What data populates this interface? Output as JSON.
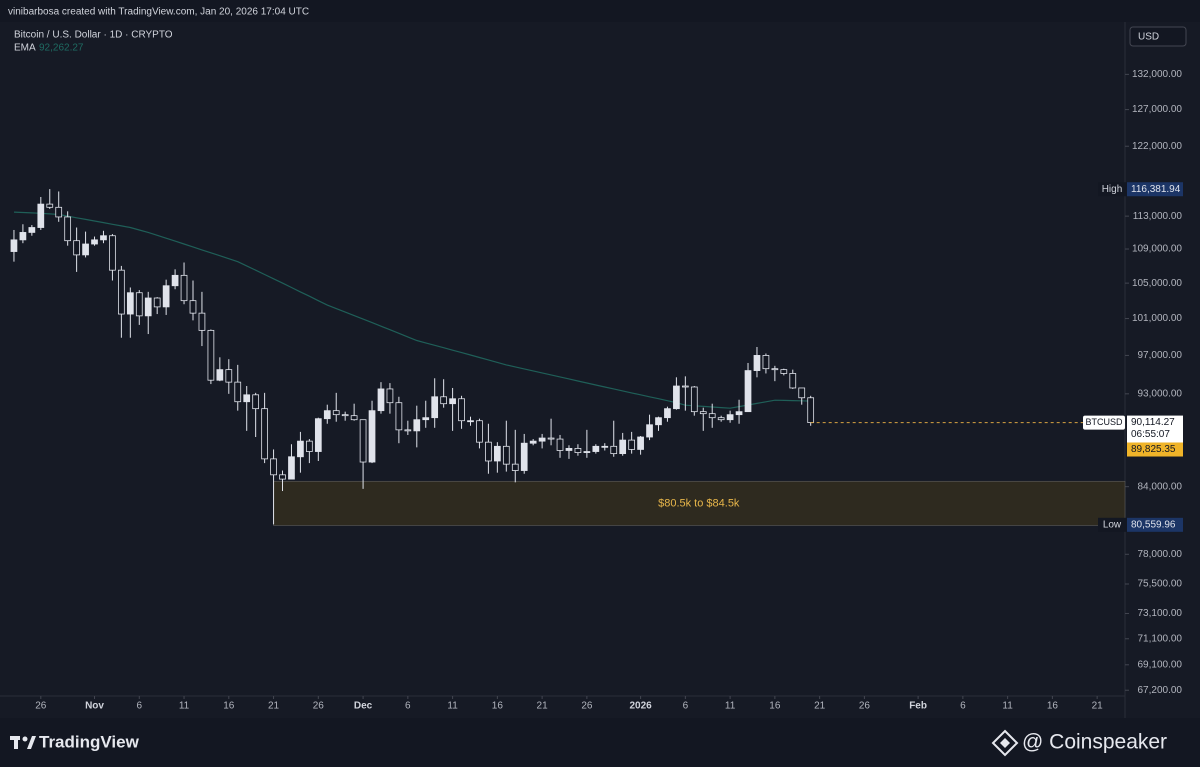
{
  "chart_data": {
    "type": "candlestick",
    "header": "vinibarbosa created with TradingView.com, Jan 20, 2026 17:04 UTC",
    "title": "Bitcoin / U.S. Dollar · 1D · CRYPTO",
    "currency": "USD",
    "log_scale": true,
    "grid": false,
    "x": [
      "Oct 23",
      "Oct 24",
      "Oct 25",
      "Oct 26",
      "Oct 27",
      "Oct 28",
      "Oct 29",
      "Oct 30",
      "Oct 31",
      "Nov 1",
      "Nov 2",
      "Nov 3",
      "Nov 4",
      "Nov 5",
      "Nov 6",
      "Nov 7",
      "Nov 8",
      "Nov 9",
      "Nov 10",
      "Nov 11",
      "Nov 12",
      "Nov 13",
      "Nov 14",
      "Nov 15",
      "Nov 16",
      "Nov 17",
      "Nov 18",
      "Nov 19",
      "Nov 20",
      "Nov 21",
      "Nov 22",
      "Nov 23",
      "Nov 24",
      "Nov 25",
      "Nov 26",
      "Nov 27",
      "Nov 28",
      "Nov 29",
      "Nov 30",
      "Dec 1",
      "Dec 2",
      "Dec 3",
      "Dec 4",
      "Dec 5",
      "Dec 6",
      "Dec 7",
      "Dec 8",
      "Dec 9",
      "Dec 10",
      "Dec 11",
      "Dec 12",
      "Dec 13",
      "Dec 14",
      "Dec 15",
      "Dec 16",
      "Dec 17",
      "Dec 18",
      "Dec 19",
      "Dec 20",
      "Dec 21",
      "Dec 22",
      "Dec 23",
      "Dec 24",
      "Dec 25",
      "Dec 26",
      "Dec 27",
      "Dec 28",
      "Dec 29",
      "Dec 30",
      "Dec 31",
      "Jan 1",
      "Jan 2",
      "Jan 3",
      "Jan 4",
      "Jan 5",
      "Jan 6",
      "Jan 7",
      "Jan 8",
      "Jan 9",
      "Jan 10",
      "Jan 11",
      "Jan 12",
      "Jan 13",
      "Jan 14",
      "Jan 15",
      "Jan 16",
      "Jan 17",
      "Jan 18",
      "Jan 19",
      "Jan 20"
    ],
    "xlim": [
      "Oct 22",
      "Feb 24"
    ],
    "xticks": [
      {
        "value": "Oct 26",
        "label": "26"
      },
      {
        "value": "Nov 1",
        "label": "Nov"
      },
      {
        "value": "Nov 6",
        "label": "6"
      },
      {
        "value": "Nov 11",
        "label": "11"
      },
      {
        "value": "Nov 16",
        "label": "16"
      },
      {
        "value": "Nov 21",
        "label": "21"
      },
      {
        "value": "Nov 26",
        "label": "26"
      },
      {
        "value": "Dec 1",
        "label": "Dec"
      },
      {
        "value": "Dec 6",
        "label": "6"
      },
      {
        "value": "Dec 11",
        "label": "11"
      },
      {
        "value": "Dec 16",
        "label": "16"
      },
      {
        "value": "Dec 21",
        "label": "21"
      },
      {
        "value": "Dec 26",
        "label": "26"
      },
      {
        "value": "Jan 1",
        "label": "2026"
      },
      {
        "value": "Jan 6",
        "label": "6"
      },
      {
        "value": "Jan 11",
        "label": "11"
      },
      {
        "value": "Jan 16",
        "label": "16"
      },
      {
        "value": "Jan 21",
        "label": "21"
      },
      {
        "value": "Jan 26",
        "label": "26"
      },
      {
        "value": "Feb 1",
        "label": "Feb"
      },
      {
        "value": "Feb 6",
        "label": "6"
      },
      {
        "value": "Feb 11",
        "label": "11"
      },
      {
        "value": "Feb 16",
        "label": "16"
      },
      {
        "value": "Feb 21",
        "label": "21"
      }
    ],
    "ylim": [
      65400,
      139800
    ],
    "yticks": [
      {
        "value": 132000,
        "label": "132,000.00"
      },
      {
        "value": 127000,
        "label": "127,000.00"
      },
      {
        "value": 122000,
        "label": "122,000.00"
      },
      {
        "value": 113000,
        "label": "113,000.00"
      },
      {
        "value": 109000,
        "label": "109,000.00"
      },
      {
        "value": 105000,
        "label": "105,000.00"
      },
      {
        "value": 101000,
        "label": "101,000.00"
      },
      {
        "value": 97000,
        "label": "97,000.00"
      },
      {
        "value": 93000,
        "label": "93,000.00"
      },
      {
        "value": 84000,
        "label": "84,000.00"
      },
      {
        "value": 78000,
        "label": "78,000.00"
      },
      {
        "value": 75500,
        "label": "75,500.00"
      },
      {
        "value": 73100,
        "label": "73,100.00"
      },
      {
        "value": 71100,
        "label": "71,100.00"
      },
      {
        "value": 69100,
        "label": "69,100.00"
      },
      {
        "value": 67200,
        "label": "67,200.00"
      }
    ],
    "series": [
      {
        "name": "BTCUSD",
        "up_color": "#e0e3eb",
        "down_color": "#131722",
        "open": [
          108700,
          110100,
          111000,
          111600,
          114500,
          114100,
          112900,
          110000,
          108300,
          109600,
          110100,
          110600,
          106500,
          101500,
          103900,
          101300,
          103300,
          102300,
          104700,
          105900,
          103000,
          101600,
          99700,
          94400,
          95500,
          94200,
          92200,
          92900,
          91500,
          86600,
          85100,
          84700,
          86800,
          88300,
          87300,
          90500,
          91300,
          90900,
          90800,
          90400,
          86300,
          91300,
          93500,
          92100,
          89400,
          89300,
          90400,
          90600,
          92700,
          92000,
          92500,
          90300,
          90300,
          88200,
          86400,
          87800,
          86100,
          85500,
          88100,
          88300,
          88600,
          88500,
          87400,
          87600,
          87200,
          87300,
          87800,
          87800,
          87100,
          88400,
          87500,
          88700,
          89900,
          90600,
          91500,
          93800,
          93700,
          91200,
          91000,
          90600,
          90400,
          90900,
          91200,
          95400,
          97000,
          95600,
          95500,
          95100,
          93600,
          92600
        ],
        "high": [
          111300,
          112000,
          111900,
          115400,
          116400,
          116100,
          113600,
          111600,
          111100,
          110500,
          111200,
          110800,
          107000,
          104500,
          104200,
          104000,
          103400,
          105400,
          106600,
          107400,
          105300,
          104000,
          99800,
          96800,
          96600,
          96000,
          93800,
          93100,
          93100,
          87500,
          85500,
          88000,
          89200,
          88500,
          90600,
          91900,
          93100,
          91200,
          92000,
          90400,
          92300,
          94200,
          94100,
          92700,
          90300,
          91800,
          92300,
          94600,
          94500,
          93600,
          92800,
          90700,
          90500,
          90000,
          88200,
          90300,
          89400,
          89000,
          88500,
          89000,
          90500,
          88900,
          87900,
          88000,
          89400,
          88000,
          88100,
          90300,
          89100,
          89200,
          88800,
          90900,
          90700,
          91700,
          94700,
          94800,
          93800,
          91600,
          92000,
          90800,
          91300,
          92400,
          96200,
          97900,
          97200,
          95900,
          95600,
          95500,
          93600,
          92800
        ],
        "low": [
          107500,
          109700,
          110600,
          111300,
          113900,
          112300,
          109400,
          106300,
          108000,
          109400,
          109700,
          105300,
          98900,
          98900,
          100300,
          99300,
          101500,
          101400,
          104300,
          102600,
          100800,
          98000,
          94000,
          94300,
          93000,
          91300,
          89300,
          88700,
          86200,
          80600,
          83600,
          84700,
          85300,
          86200,
          86400,
          90000,
          90200,
          90300,
          90300,
          83800,
          86200,
          91000,
          91000,
          88100,
          88900,
          87700,
          89600,
          89600,
          91600,
          89300,
          89500,
          89800,
          87600,
          85200,
          85300,
          85400,
          84400,
          85200,
          87900,
          87600,
          87900,
          86700,
          86600,
          86900,
          86700,
          87100,
          87400,
          86800,
          86900,
          87100,
          87000,
          88400,
          89300,
          90200,
          91400,
          91300,
          90800,
          89300,
          89600,
          90200,
          90100,
          90000,
          91200,
          94700,
          95100,
          94300,
          94900,
          93500,
          91900,
          89800
        ],
        "close": [
          110100,
          111000,
          111600,
          114500,
          114100,
          112900,
          110000,
          108300,
          109600,
          110100,
          110600,
          106500,
          101500,
          103900,
          101300,
          103300,
          102300,
          104700,
          105900,
          103000,
          101600,
          99700,
          94400,
          95500,
          94200,
          92200,
          92900,
          91500,
          86600,
          85100,
          84700,
          86800,
          88300,
          87300,
          90500,
          91300,
          90900,
          90800,
          90400,
          86300,
          91300,
          93500,
          92100,
          89400,
          89300,
          90400,
          90600,
          92700,
          92000,
          92500,
          90300,
          90300,
          88200,
          86400,
          87800,
          86100,
          85500,
          88100,
          88300,
          88600,
          88500,
          87400,
          87600,
          87200,
          87300,
          87800,
          87800,
          87100,
          88400,
          87500,
          88700,
          89900,
          90600,
          91500,
          93800,
          93700,
          91200,
          91000,
          90600,
          90400,
          90900,
          91200,
          95400,
          97000,
          95600,
          95500,
          95100,
          93600,
          92600,
          90114.27
        ]
      },
      {
        "name": "EMA",
        "color": "#1f5f58",
        "legend_value": {
          "value": 92262.27,
          "label": "92,262.27"
        },
        "values": [
          113500,
          113450,
          113400,
          113350,
          113280,
          113200,
          113000,
          112800,
          112600,
          112400,
          112200,
          112000,
          111800,
          111600,
          111300,
          111000,
          110650,
          110300,
          109950,
          109600,
          109250,
          108900,
          108550,
          108200,
          107850,
          107500,
          107000,
          106500,
          106000,
          105500,
          105000,
          104500,
          104000,
          103500,
          103000,
          102500,
          102110,
          101720,
          101330,
          100940,
          100550,
          100160,
          99770,
          99380,
          98990,
          98600,
          98340,
          98080,
          97820,
          97560,
          97300,
          97040,
          96780,
          96520,
          96260,
          96000,
          95790,
          95580,
          95370,
          95160,
          94950,
          94740,
          94530,
          94320,
          94110,
          93900,
          93700,
          93500,
          93300,
          93100,
          92900,
          92700,
          92500,
          92300,
          92100,
          91850,
          91790,
          91730,
          91670,
          91610,
          91550,
          91710,
          91870,
          92030,
          92190,
          92350,
          92330,
          92310,
          92290,
          92262.27
        ]
      }
    ],
    "zone": {
      "label": "$80.5k to $84.5k",
      "start": "Nov 21",
      "low": 80500,
      "high": 84500,
      "color": "#2e2a1f",
      "text_color": "#e8b64a"
    },
    "markers": [
      {
        "label": "High",
        "value": 116381.94,
        "value_label": "116,381.94"
      },
      {
        "label": "Low",
        "value": 80559.96,
        "value_label": "80,559.96"
      }
    ],
    "last_price": {
      "label": "BTCUSD",
      "value": 90114.27,
      "value_label": "90,114.27",
      "countdown": "06:55:07",
      "line_color": "#d9a441"
    },
    "mark_price": {
      "value": 89825.35,
      "value_label": "89,825.35",
      "color": "#f0b429"
    },
    "footer": {
      "brand": "TradingView",
      "credit": "@ Coinspeaker"
    }
  }
}
